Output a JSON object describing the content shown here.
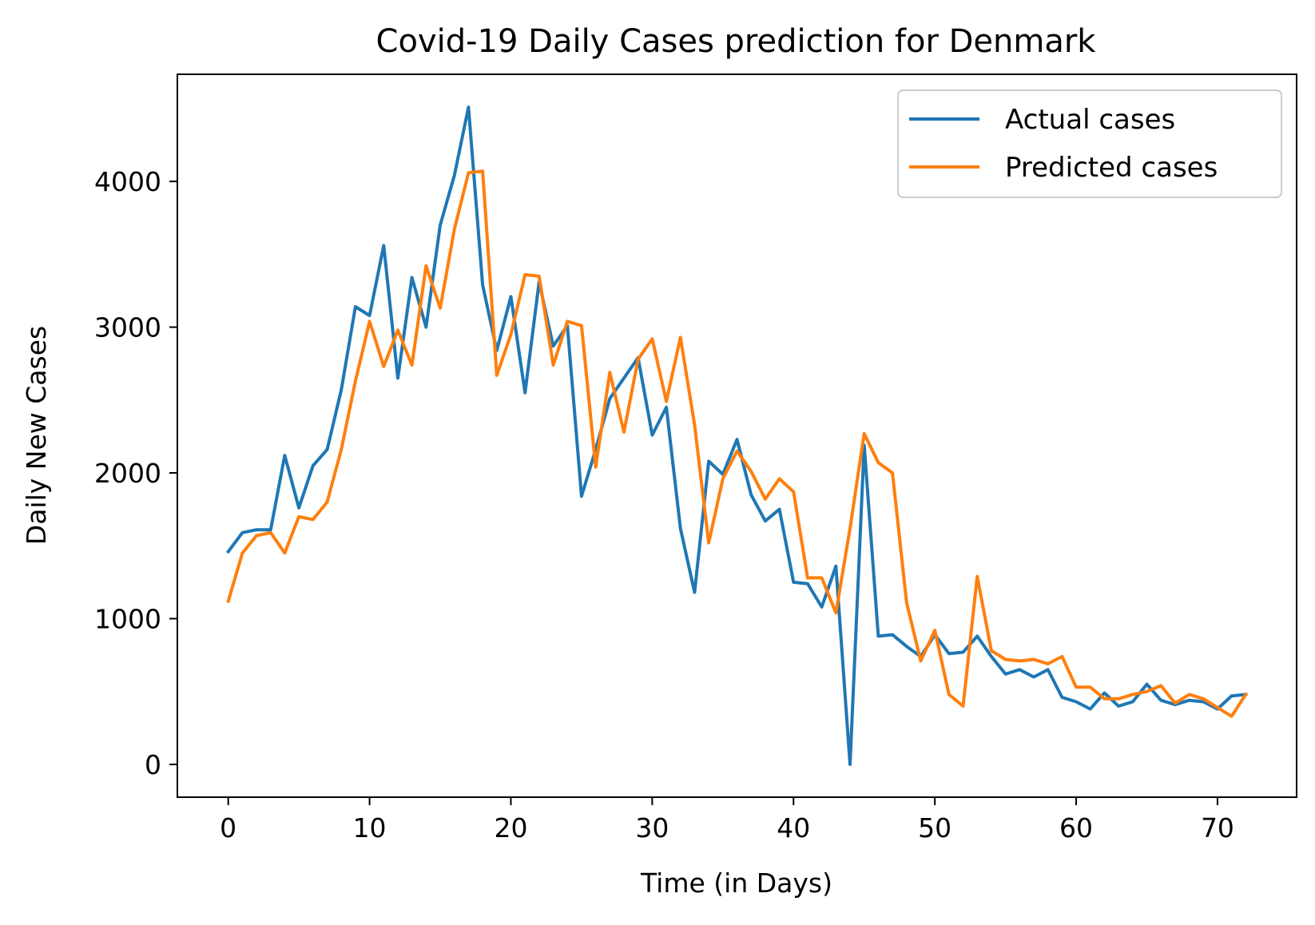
{
  "chart_data": {
    "type": "line",
    "title": "Covid-19 Daily Cases prediction for Denmark",
    "xlabel": "Time (in Days)",
    "ylabel": "Daily New Cases",
    "xlim": [
      -3.6,
      75.6
    ],
    "ylim": [
      -225,
      4735
    ],
    "xticks": [
      0,
      10,
      20,
      30,
      40,
      50,
      60,
      70
    ],
    "yticks": [
      0,
      1000,
      2000,
      3000,
      4000
    ],
    "grid": false,
    "legend_position": "top-right",
    "x": [
      0,
      1,
      2,
      3,
      4,
      5,
      6,
      7,
      8,
      9,
      10,
      11,
      12,
      13,
      14,
      15,
      16,
      17,
      18,
      19,
      20,
      21,
      22,
      23,
      24,
      25,
      26,
      27,
      28,
      29,
      30,
      31,
      32,
      33,
      34,
      35,
      36,
      37,
      38,
      39,
      40,
      41,
      42,
      43,
      44,
      45,
      46,
      47,
      48,
      49,
      50,
      51,
      52,
      53,
      54,
      55,
      56,
      57,
      58,
      59,
      60,
      61,
      62,
      63,
      64,
      65,
      66,
      67,
      68,
      69,
      70,
      71,
      72
    ],
    "series": [
      {
        "name": "Actual cases",
        "color": "#1f77b4",
        "values": [
          1460,
          1590,
          1610,
          1610,
          2120,
          1760,
          2050,
          2160,
          2570,
          3140,
          3080,
          3560,
          2650,
          3340,
          3000,
          3700,
          4040,
          4510,
          3290,
          2840,
          3210,
          2550,
          3310,
          2870,
          3010,
          1840,
          2160,
          2510,
          2650,
          2790,
          2260,
          2450,
          1620,
          1180,
          2080,
          1990,
          2230,
          1850,
          1670,
          1750,
          1250,
          1240,
          1080,
          1360,
          0,
          2190,
          880,
          890,
          810,
          740,
          890,
          760,
          770,
          880,
          740,
          620,
          650,
          600,
          650,
          460,
          430,
          380,
          490,
          400,
          430,
          550,
          440,
          410,
          440,
          430,
          380,
          470,
          480
        ]
      },
      {
        "name": "Predicted cases",
        "color": "#ff7f0e",
        "values": [
          1120,
          1450,
          1570,
          1590,
          1450,
          1700,
          1680,
          1800,
          2160,
          2630,
          3040,
          2730,
          2980,
          2740,
          3420,
          3130,
          3670,
          4060,
          4070,
          2670,
          2950,
          3360,
          3350,
          2740,
          3040,
          3010,
          2040,
          2690,
          2280,
          2780,
          2920,
          2490,
          2930,
          2330,
          1520,
          1960,
          2150,
          2010,
          1820,
          1960,
          1870,
          1280,
          1280,
          1040,
          1620,
          2270,
          2070,
          2000,
          1110,
          710,
          920,
          480,
          400,
          1290,
          780,
          720,
          710,
          720,
          690,
          740,
          530,
          530,
          450,
          450,
          480,
          500,
          540,
          420,
          480,
          450,
          390,
          330,
          480
        ]
      }
    ]
  }
}
